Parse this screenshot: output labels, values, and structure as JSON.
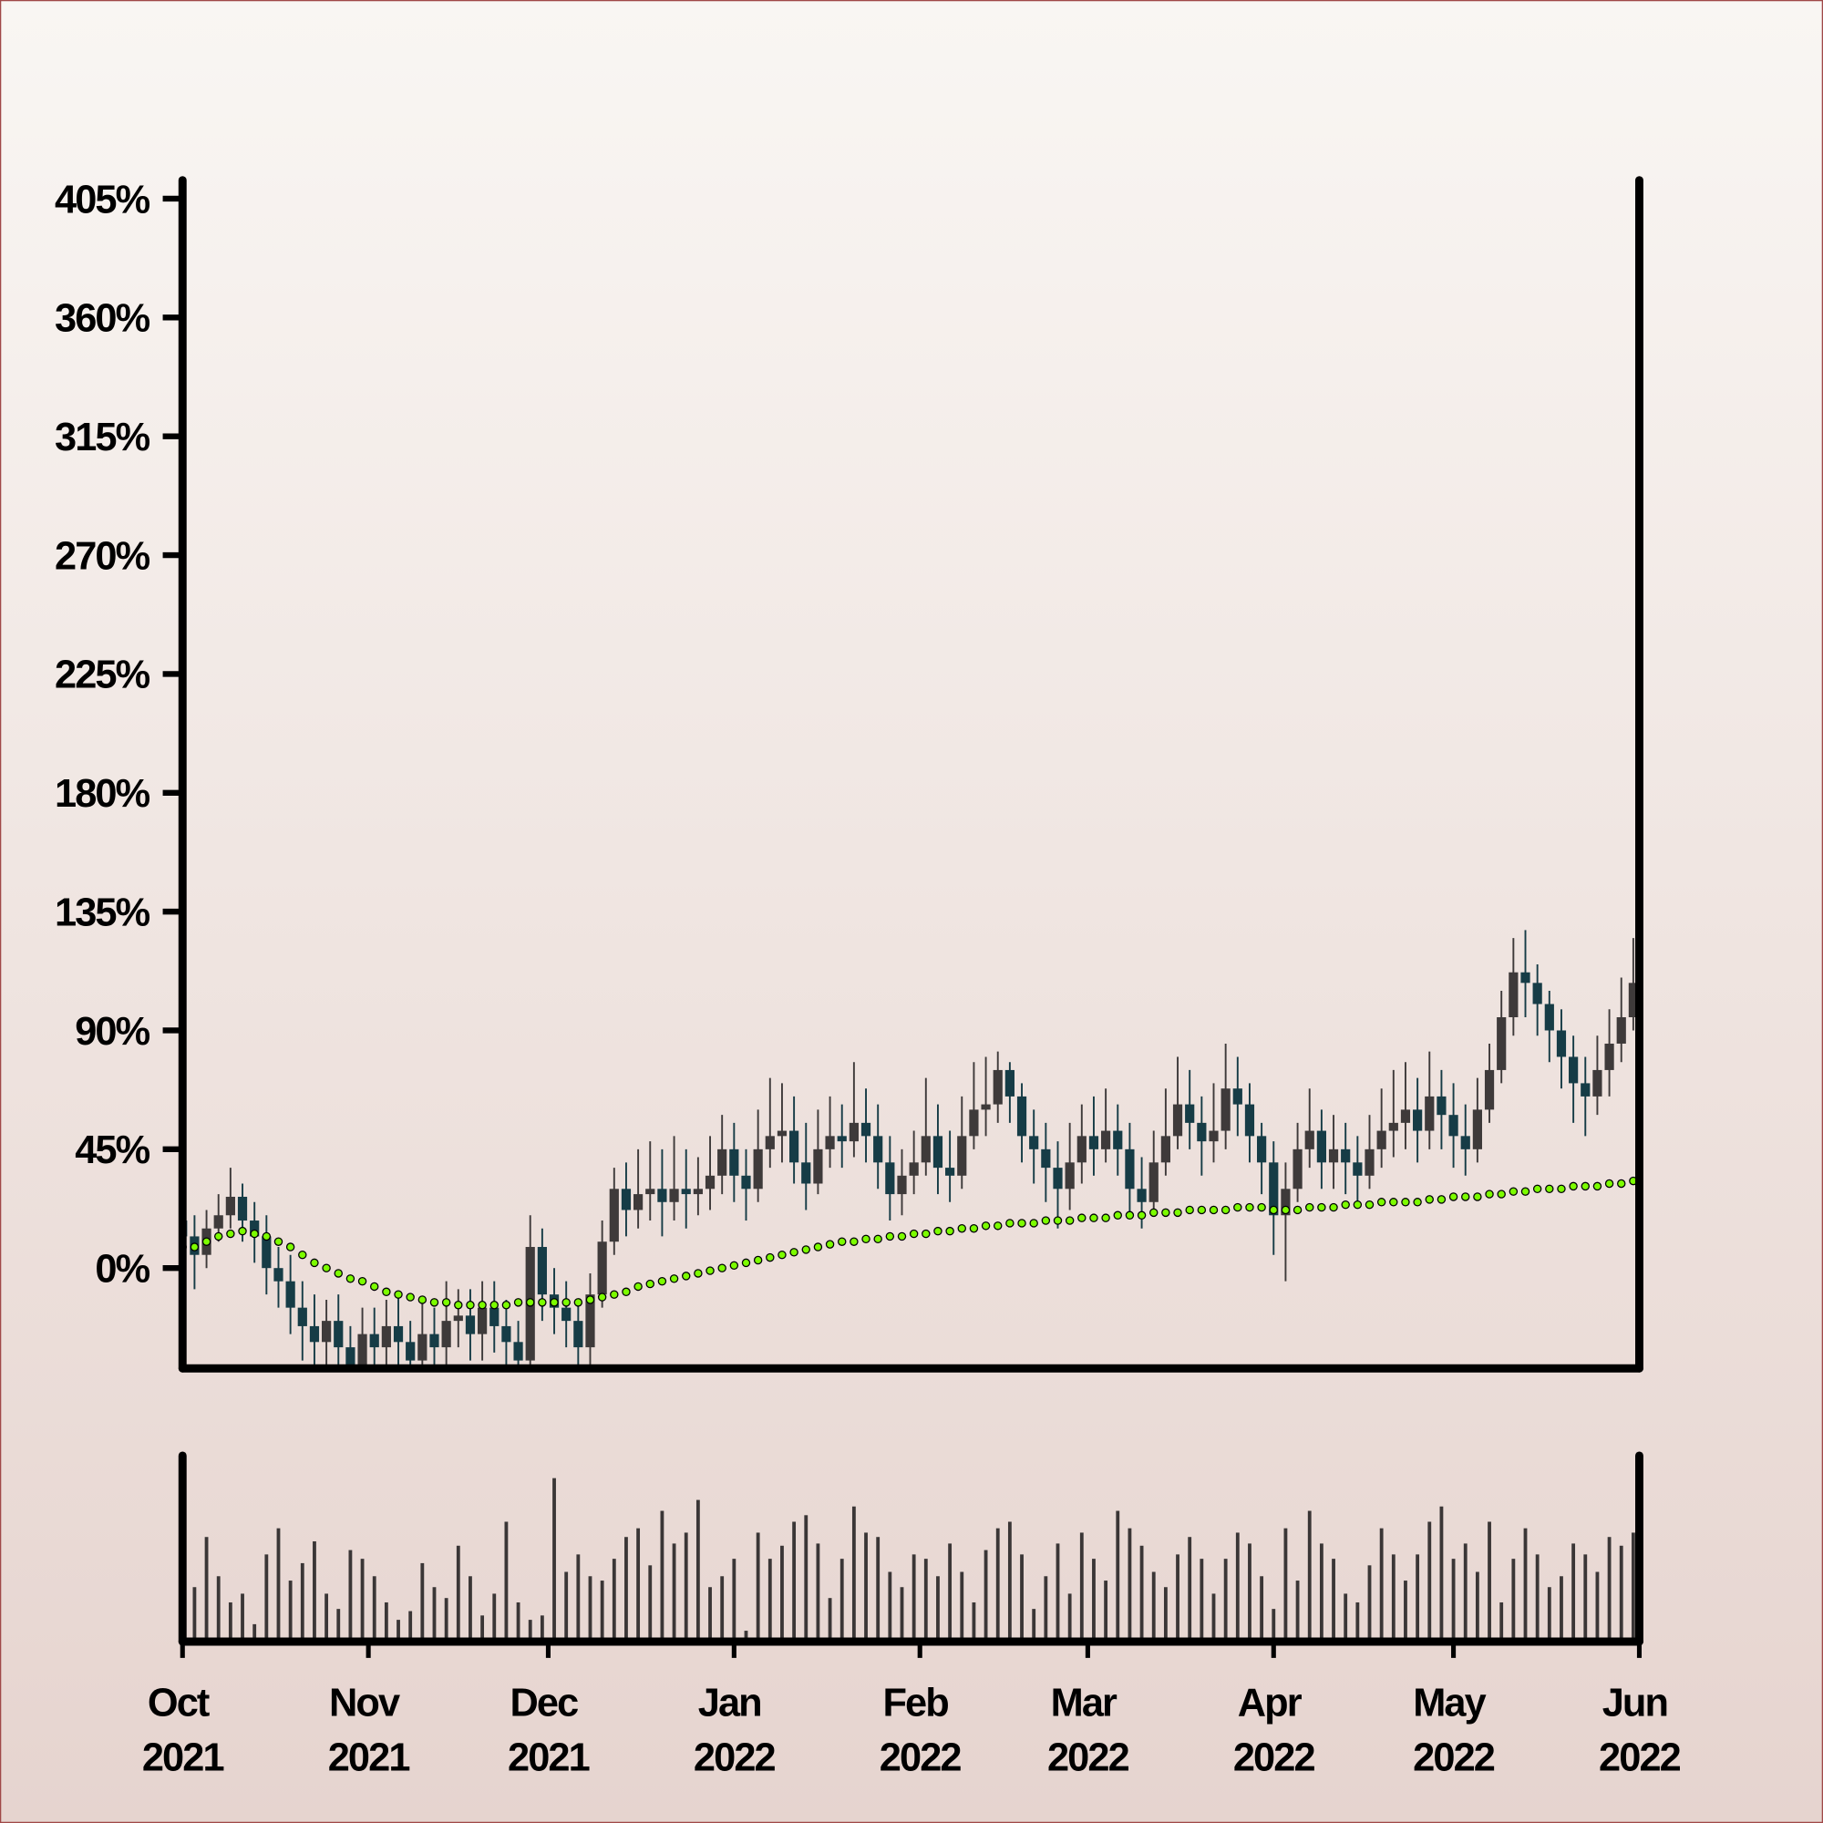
{
  "chart_data": {
    "type": "candlestick",
    "up_color": "#3e3a3a",
    "down_color": "#163c46",
    "xlim": [
      0,
      243
    ],
    "xticks": [
      {
        "value": 0,
        "label": "Oct 2021"
      },
      {
        "value": 31,
        "label": "Nov 2021"
      },
      {
        "value": 61,
        "label": "Dec 2021"
      },
      {
        "value": 92,
        "label": "Jan 2022"
      },
      {
        "value": 123,
        "label": "Feb 2022"
      },
      {
        "value": 151,
        "label": "Mar 2022"
      },
      {
        "value": 182,
        "label": "Apr 2022"
      },
      {
        "value": 212,
        "label": "May 2022"
      },
      {
        "value": 243,
        "label": "Jun 2022"
      }
    ],
    "ylim": [
      -38,
      412
    ],
    "yticks": [
      {
        "value": 0,
        "label": "0%"
      },
      {
        "value": 45,
        "label": "45%"
      },
      {
        "value": 90,
        "label": "90%"
      },
      {
        "value": 135,
        "label": "135%"
      },
      {
        "value": 180,
        "label": "180%"
      },
      {
        "value": 225,
        "label": "225%"
      },
      {
        "value": 270,
        "label": "270%"
      },
      {
        "value": 315,
        "label": "315%"
      },
      {
        "value": 360,
        "label": "360%"
      },
      {
        "value": 405,
        "label": "405%"
      }
    ],
    "grid": false,
    "x": [
      0,
      2,
      4,
      6,
      8,
      10,
      12,
      14,
      16,
      18,
      20,
      22,
      24,
      26,
      28,
      30,
      32,
      34,
      36,
      38,
      40,
      42,
      44,
      46,
      48,
      50,
      52,
      54,
      56,
      58,
      60,
      62,
      64,
      66,
      68,
      70,
      72,
      74,
      76,
      78,
      80,
      82,
      84,
      86,
      88,
      90,
      92,
      94,
      96,
      98,
      100,
      102,
      104,
      106,
      108,
      110,
      112,
      114,
      116,
      118,
      120,
      122,
      124,
      126,
      128,
      130,
      132,
      134,
      136,
      138,
      140,
      142,
      144,
      146,
      148,
      150,
      152,
      154,
      156,
      158,
      160,
      162,
      164,
      166,
      168,
      170,
      172,
      174,
      176,
      178,
      180,
      182,
      184,
      186,
      188,
      190,
      192,
      194,
      196,
      198,
      200,
      202,
      204,
      206,
      208,
      210,
      212,
      214,
      216,
      218,
      220,
      222,
      224,
      226,
      228,
      230,
      232,
      234,
      236,
      238,
      240,
      242
    ],
    "open": [
      18,
      12,
      5,
      15,
      20,
      27,
      18,
      12,
      0,
      -5,
      -15,
      -22,
      -28,
      -20,
      -30,
      -40,
      -25,
      -30,
      -22,
      -28,
      -35,
      -25,
      -30,
      -20,
      -18,
      -25,
      -15,
      -22,
      -28,
      -35,
      8,
      -10,
      -15,
      -20,
      -30,
      -10,
      10,
      30,
      22,
      28,
      30,
      25,
      30,
      28,
      30,
      35,
      45,
      35,
      30,
      45,
      50,
      52,
      40,
      32,
      45,
      50,
      48,
      55,
      50,
      40,
      28,
      35,
      40,
      50,
      38,
      35,
      50,
      60,
      62,
      75,
      65,
      50,
      45,
      38,
      30,
      40,
      50,
      45,
      52,
      45,
      30,
      25,
      40,
      50,
      62,
      55,
      48,
      52,
      68,
      62,
      50,
      40,
      20,
      30,
      45,
      52,
      40,
      45,
      40,
      35,
      45,
      52,
      55,
      60,
      52,
      65,
      58,
      50,
      45,
      60,
      75,
      95,
      112,
      108,
      100,
      90,
      80,
      70,
      65,
      75,
      85,
      95
    ],
    "high": [
      28,
      20,
      22,
      28,
      38,
      32,
      25,
      20,
      8,
      5,
      -5,
      -10,
      -12,
      -10,
      -22,
      -15,
      -15,
      -12,
      -10,
      -20,
      -12,
      -15,
      -5,
      -8,
      -8,
      -5,
      -5,
      -12,
      -20,
      20,
      15,
      0,
      -5,
      -12,
      -2,
      18,
      38,
      40,
      45,
      48,
      45,
      50,
      45,
      42,
      50,
      58,
      55,
      45,
      60,
      72,
      70,
      65,
      55,
      60,
      65,
      62,
      78,
      68,
      62,
      50,
      45,
      52,
      72,
      62,
      52,
      65,
      78,
      80,
      82,
      78,
      70,
      60,
      55,
      48,
      55,
      62,
      65,
      68,
      62,
      55,
      42,
      52,
      68,
      80,
      75,
      65,
      70,
      85,
      80,
      70,
      55,
      48,
      40,
      55,
      68,
      60,
      58,
      55,
      50,
      58,
      68,
      75,
      78,
      72,
      82,
      75,
      70,
      62,
      72,
      85,
      105,
      125,
      128,
      115,
      105,
      98,
      88,
      80,
      88,
      98,
      110,
      125
    ],
    "low": [
      5,
      -8,
      0,
      10,
      15,
      10,
      2,
      -10,
      -15,
      -25,
      -35,
      -40,
      -38,
      -42,
      -50,
      -48,
      -42,
      -40,
      -38,
      -45,
      -45,
      -40,
      -38,
      -30,
      -35,
      -35,
      -32,
      -38,
      -48,
      -40,
      -20,
      -25,
      -30,
      -42,
      -38,
      -15,
      5,
      12,
      15,
      18,
      12,
      18,
      15,
      20,
      22,
      28,
      25,
      18,
      25,
      38,
      40,
      32,
      22,
      28,
      38,
      38,
      42,
      40,
      30,
      18,
      20,
      28,
      35,
      28,
      25,
      30,
      45,
      50,
      55,
      55,
      40,
      32,
      25,
      15,
      22,
      32,
      35,
      40,
      35,
      20,
      15,
      20,
      35,
      45,
      45,
      35,
      40,
      45,
      50,
      40,
      28,
      5,
      -5,
      25,
      38,
      30,
      30,
      28,
      25,
      30,
      38,
      42,
      45,
      40,
      45,
      45,
      38,
      35,
      40,
      55,
      70,
      88,
      95,
      88,
      78,
      68,
      55,
      50,
      58,
      65,
      78,
      90
    ],
    "close": [
      12,
      5,
      15,
      20,
      27,
      18,
      12,
      0,
      -5,
      -15,
      -22,
      -28,
      -20,
      -30,
      -40,
      -25,
      -30,
      -22,
      -28,
      -35,
      -25,
      -30,
      -20,
      -18,
      -25,
      -15,
      -22,
      -28,
      -35,
      8,
      -10,
      -15,
      -20,
      -30,
      -10,
      10,
      30,
      22,
      28,
      30,
      25,
      30,
      28,
      30,
      35,
      45,
      35,
      30,
      45,
      50,
      52,
      40,
      32,
      45,
      50,
      48,
      55,
      50,
      40,
      28,
      35,
      40,
      50,
      38,
      35,
      50,
      60,
      62,
      75,
      65,
      50,
      45,
      38,
      30,
      40,
      50,
      45,
      52,
      45,
      30,
      25,
      40,
      50,
      62,
      55,
      48,
      52,
      68,
      62,
      50,
      40,
      20,
      30,
      45,
      52,
      40,
      45,
      40,
      35,
      45,
      52,
      55,
      60,
      52,
      65,
      58,
      50,
      45,
      60,
      75,
      95,
      112,
      108,
      100,
      90,
      80,
      70,
      65,
      75,
      85,
      95,
      108
    ],
    "moving_average": {
      "color": "#7cfc00",
      "values": [
        8,
        8,
        10,
        12,
        13,
        14,
        13,
        12,
        10,
        8,
        5,
        2,
        0,
        -2,
        -4,
        -5,
        -7,
        -9,
        -10,
        -11,
        -12,
        -13,
        -13,
        -14,
        -14,
        -14,
        -14,
        -14,
        -13,
        -13,
        -13,
        -13,
        -13,
        -13,
        -12,
        -11,
        -10,
        -9,
        -7,
        -6,
        -5,
        -4,
        -3,
        -2,
        -1,
        0,
        1,
        2,
        3,
        4,
        5,
        6,
        7,
        8,
        9,
        10,
        10,
        11,
        11,
        12,
        12,
        13,
        13,
        14,
        14,
        15,
        15,
        16,
        16,
        17,
        17,
        17,
        18,
        18,
        18,
        19,
        19,
        19,
        20,
        20,
        20,
        21,
        21,
        21,
        22,
        22,
        22,
        22,
        23,
        23,
        23,
        22,
        22,
        22,
        23,
        23,
        23,
        24,
        24,
        24,
        25,
        25,
        25,
        25,
        26,
        26,
        27,
        27,
        27,
        28,
        28,
        29,
        29,
        30,
        30,
        30,
        31,
        31,
        31,
        32,
        32,
        33
      ]
    },
    "volume": {
      "color": "#3a3636",
      "ylim": [
        0,
        80
      ],
      "values": [
        32,
        25,
        48,
        30,
        18,
        22,
        8,
        40,
        52,
        28,
        36,
        46,
        22,
        15,
        42,
        38,
        30,
        18,
        10,
        14,
        36,
        25,
        20,
        44,
        30,
        12,
        22,
        55,
        18,
        10,
        12,
        75,
        32,
        40,
        30,
        28,
        38,
        48,
        52,
        35,
        60,
        45,
        50,
        65,
        25,
        30,
        38,
        5,
        50,
        38,
        44,
        55,
        58,
        45,
        20,
        38,
        62,
        50,
        48,
        32,
        25,
        40,
        38,
        30,
        45,
        32,
        18,
        42,
        52,
        55,
        40,
        15,
        30,
        45,
        22,
        50,
        38,
        28,
        60,
        52,
        44,
        32,
        25,
        40,
        48,
        38,
        22,
        38,
        50,
        45,
        30,
        15,
        52,
        28,
        60,
        45,
        38,
        22,
        18,
        35,
        52,
        40,
        28,
        40,
        55,
        62,
        38,
        45,
        32,
        55,
        18,
        38,
        52,
        40,
        25,
        30,
        45,
        40,
        32,
        48,
        44,
        50
      ]
    }
  }
}
